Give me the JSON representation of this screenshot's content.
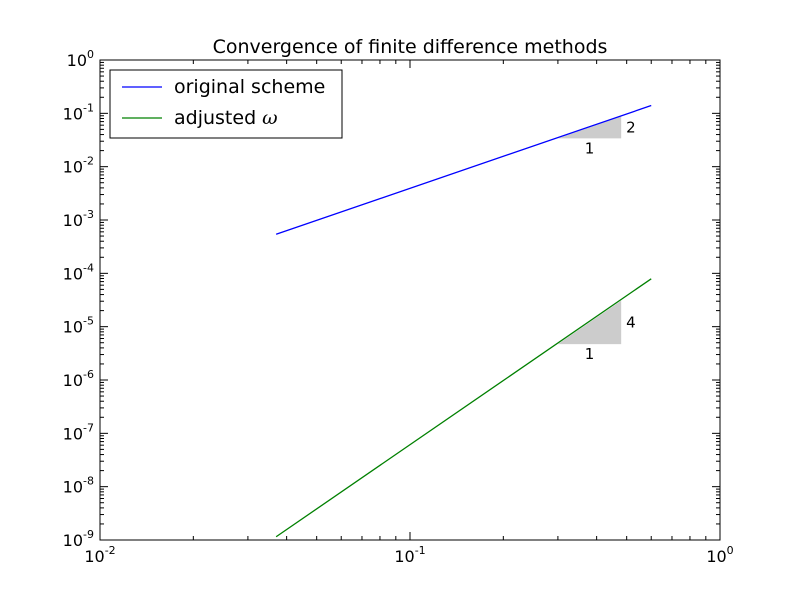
{
  "chart_data": {
    "type": "line",
    "title": "Convergence of finite difference methods",
    "xscale": "log",
    "yscale": "log",
    "xlim": [
      0.01,
      1
    ],
    "ylim": [
      1e-09,
      1
    ],
    "grid": false,
    "legend_position": "top-left",
    "x_ticks": [
      {
        "base": "10",
        "exp": "-2"
      },
      {
        "base": "10",
        "exp": "-1"
      },
      {
        "base": "10",
        "exp": "0"
      }
    ],
    "y_ticks": [
      {
        "base": "10",
        "exp": "-9"
      },
      {
        "base": "10",
        "exp": "-8"
      },
      {
        "base": "10",
        "exp": "-7"
      },
      {
        "base": "10",
        "exp": "-6"
      },
      {
        "base": "10",
        "exp": "-5"
      },
      {
        "base": "10",
        "exp": "-4"
      },
      {
        "base": "10",
        "exp": "-3"
      },
      {
        "base": "10",
        "exp": "-2"
      },
      {
        "base": "10",
        "exp": "-1"
      },
      {
        "base": "10",
        "exp": "0"
      }
    ],
    "series": [
      {
        "name": "original scheme",
        "label_text": "original scheme",
        "label_symbol": "",
        "color": "#0000ff",
        "x": [
          0.037,
          0.6
        ],
        "y": [
          0.00054,
          0.14
        ]
      },
      {
        "name": "adjusted ω",
        "label_text": "adjusted ",
        "label_symbol": "ω",
        "color": "#008000",
        "x": [
          0.037,
          0.6
        ],
        "y": [
          1.15e-09,
          7.9e-05
        ]
      }
    ],
    "annotations": [
      {
        "type": "slope-triangle",
        "x0": 0.3,
        "x1": 0.48,
        "y0": 0.034,
        "slope": 2,
        "run_label": "1",
        "rise_label": "2",
        "fill": "#cccccc"
      },
      {
        "type": "slope-triangle",
        "x0": 0.3,
        "x1": 0.48,
        "y0": 4.7e-06,
        "slope": 4,
        "run_label": "1",
        "rise_label": "4",
        "fill": "#cccccc"
      }
    ]
  }
}
